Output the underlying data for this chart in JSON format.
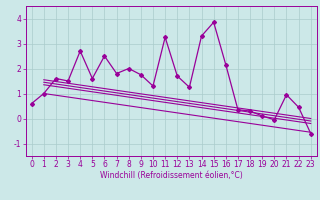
{
  "x": [
    0,
    1,
    2,
    3,
    4,
    5,
    6,
    7,
    8,
    9,
    10,
    11,
    12,
    13,
    14,
    15,
    16,
    17,
    18,
    19,
    20,
    21,
    22,
    23
  ],
  "y_main": [
    0.6,
    1.0,
    1.6,
    1.5,
    2.7,
    1.6,
    2.5,
    1.8,
    2.0,
    1.75,
    1.3,
    3.25,
    1.7,
    1.25,
    3.3,
    3.85,
    2.15,
    0.35,
    0.3,
    0.1,
    -0.05,
    0.95,
    0.45,
    -0.6
  ],
  "trend_lines": [
    {
      "start_x": 1,
      "start_y": 1.55,
      "end_x": 23,
      "end_y": 0.0
    },
    {
      "start_x": 1,
      "start_y": 1.45,
      "end_x": 23,
      "end_y": -0.1
    },
    {
      "start_x": 1,
      "start_y": 1.35,
      "end_x": 23,
      "end_y": -0.2
    },
    {
      "start_x": 1,
      "start_y": 1.0,
      "end_x": 23,
      "end_y": -0.55
    }
  ],
  "color": "#990099",
  "bg_color": "#cce8e8",
  "grid_color": "#aacccc",
  "xlabel": "Windchill (Refroidissement éolien,°C)",
  "ylim": [
    -1.5,
    4.5
  ],
  "xlim": [
    -0.5,
    23.5
  ],
  "yticks": [
    -1,
    0,
    1,
    2,
    3,
    4
  ],
  "xticks": [
    0,
    1,
    2,
    3,
    4,
    5,
    6,
    7,
    8,
    9,
    10,
    11,
    12,
    13,
    14,
    15,
    16,
    17,
    18,
    19,
    20,
    21,
    22,
    23
  ],
  "tick_fontsize": 5.5,
  "xlabel_fontsize": 5.5
}
